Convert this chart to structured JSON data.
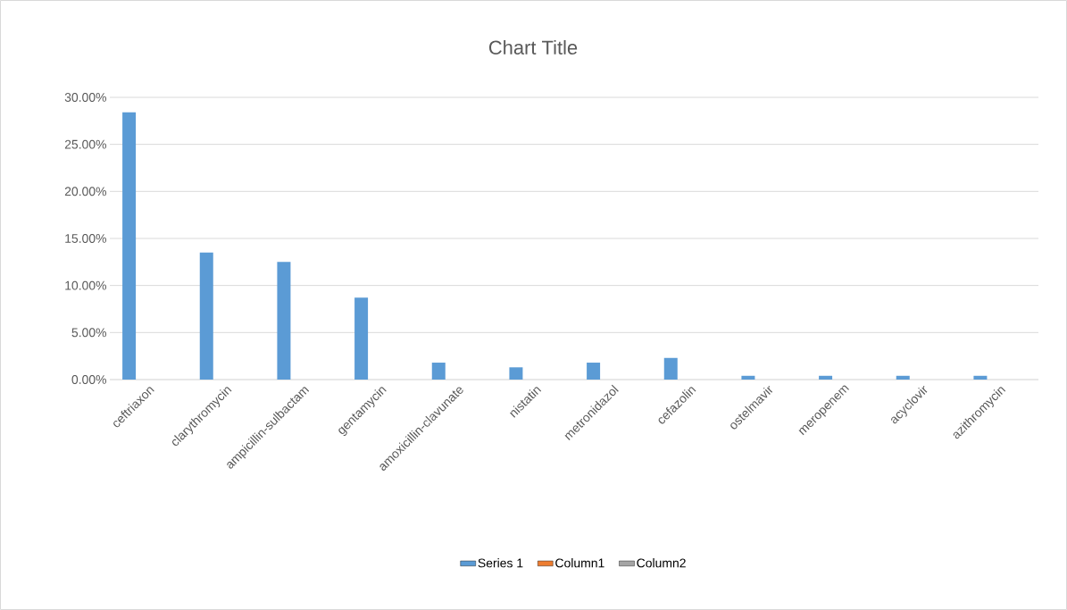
{
  "chart_data": {
    "type": "bar",
    "title": "Chart Title",
    "categories": [
      "ceftriaxon",
      "clarythromycin",
      "ampicillin-sulbactam",
      "gentamycin",
      "amoxicillin-clavunate",
      "nistatin",
      "metronidazol",
      "cefazolin",
      "ostelmavir",
      "meropenem",
      "acyclovir",
      "azithromycin"
    ],
    "series": [
      {
        "name": "Series 1",
        "color": "#5b9bd5",
        "values": [
          28.4,
          13.5,
          12.5,
          8.7,
          1.8,
          1.3,
          1.8,
          2.3,
          0.4,
          0.4,
          0.4,
          0.4
        ]
      },
      {
        "name": "Column1",
        "color": "#ed7d31",
        "values": [
          null,
          null,
          null,
          null,
          null,
          null,
          null,
          null,
          null,
          null,
          null,
          null
        ]
      },
      {
        "name": "Column2",
        "color": "#a5a5a5",
        "values": [
          null,
          null,
          null,
          null,
          null,
          null,
          null,
          null,
          null,
          null,
          null,
          null
        ]
      }
    ],
    "ylim": [
      0,
      30
    ],
    "yticks": [
      {
        "value": 0,
        "label": "0.00%"
      },
      {
        "value": 5,
        "label": "5.00%"
      },
      {
        "value": 10,
        "label": "10.00%"
      },
      {
        "value": 15,
        "label": "15.00%"
      },
      {
        "value": 20,
        "label": "20.00%"
      },
      {
        "value": 25,
        "label": "25.00%"
      },
      {
        "value": 30,
        "label": "30.00%"
      }
    ],
    "grid": "y",
    "legend": "bottom"
  }
}
